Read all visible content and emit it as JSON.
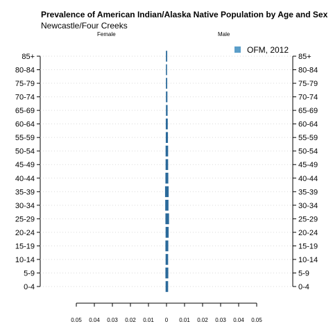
{
  "title": "Prevalence of American Indian/Alaska Native Population by Age and Sex",
  "subtitle": "Newcastle/Four Creeks",
  "left_side_label": "Female",
  "right_side_label": "Male",
  "colors": {
    "bar": "#2b6a9b",
    "legend_swatch": "#5b9ec9",
    "gridline": "#d9d9d9",
    "axis": "#000000"
  },
  "chart_data": {
    "type": "bar",
    "orientation": "horizontal",
    "title": "Prevalence of American Indian/Alaska Native Population by Age and Sex",
    "subtitle": "Newcastle/Four Creeks",
    "categories": [
      "0-4",
      "5-9",
      "10-14",
      "15-19",
      "20-24",
      "25-29",
      "30-34",
      "35-39",
      "40-44",
      "45-49",
      "50-54",
      "55-59",
      "60-64",
      "65-69",
      "70-74",
      "75-79",
      "80-84",
      "85+"
    ],
    "series": [
      {
        "name": "OFM, 2012",
        "group": "Female",
        "values": [
          0.0005,
          0.0006,
          0.0005,
          0.0006,
          0.0005,
          0.0006,
          0.0007,
          0.0008,
          0.0006,
          0.0005,
          0.0005,
          0.0004,
          0.0004,
          0.0003,
          0.0003,
          0.0002,
          0.0002,
          0.0001
        ]
      },
      {
        "name": "OFM, 2012",
        "group": "Male",
        "values": [
          0.0009,
          0.001,
          0.0009,
          0.001,
          0.0012,
          0.0014,
          0.0011,
          0.0012,
          0.001,
          0.0009,
          0.0009,
          0.0008,
          0.0007,
          0.0006,
          0.0005,
          0.0004,
          0.0003,
          0.0004
        ]
      }
    ],
    "legend": {
      "entries": [
        "OFM, 2012"
      ],
      "position": "top-right"
    },
    "xlim": [
      -0.05,
      0.05
    ],
    "xticks": [
      -0.05,
      -0.04,
      -0.03,
      -0.02,
      -0.01,
      0,
      0.01,
      0.02,
      0.03,
      0.04,
      0.05
    ],
    "xtick_labels": [
      "0.05",
      "0.04",
      "0.03",
      "0.02",
      "0.01",
      "0",
      "0.01",
      "0.02",
      "0.03",
      "0.04",
      "0.05"
    ],
    "grid": true
  }
}
